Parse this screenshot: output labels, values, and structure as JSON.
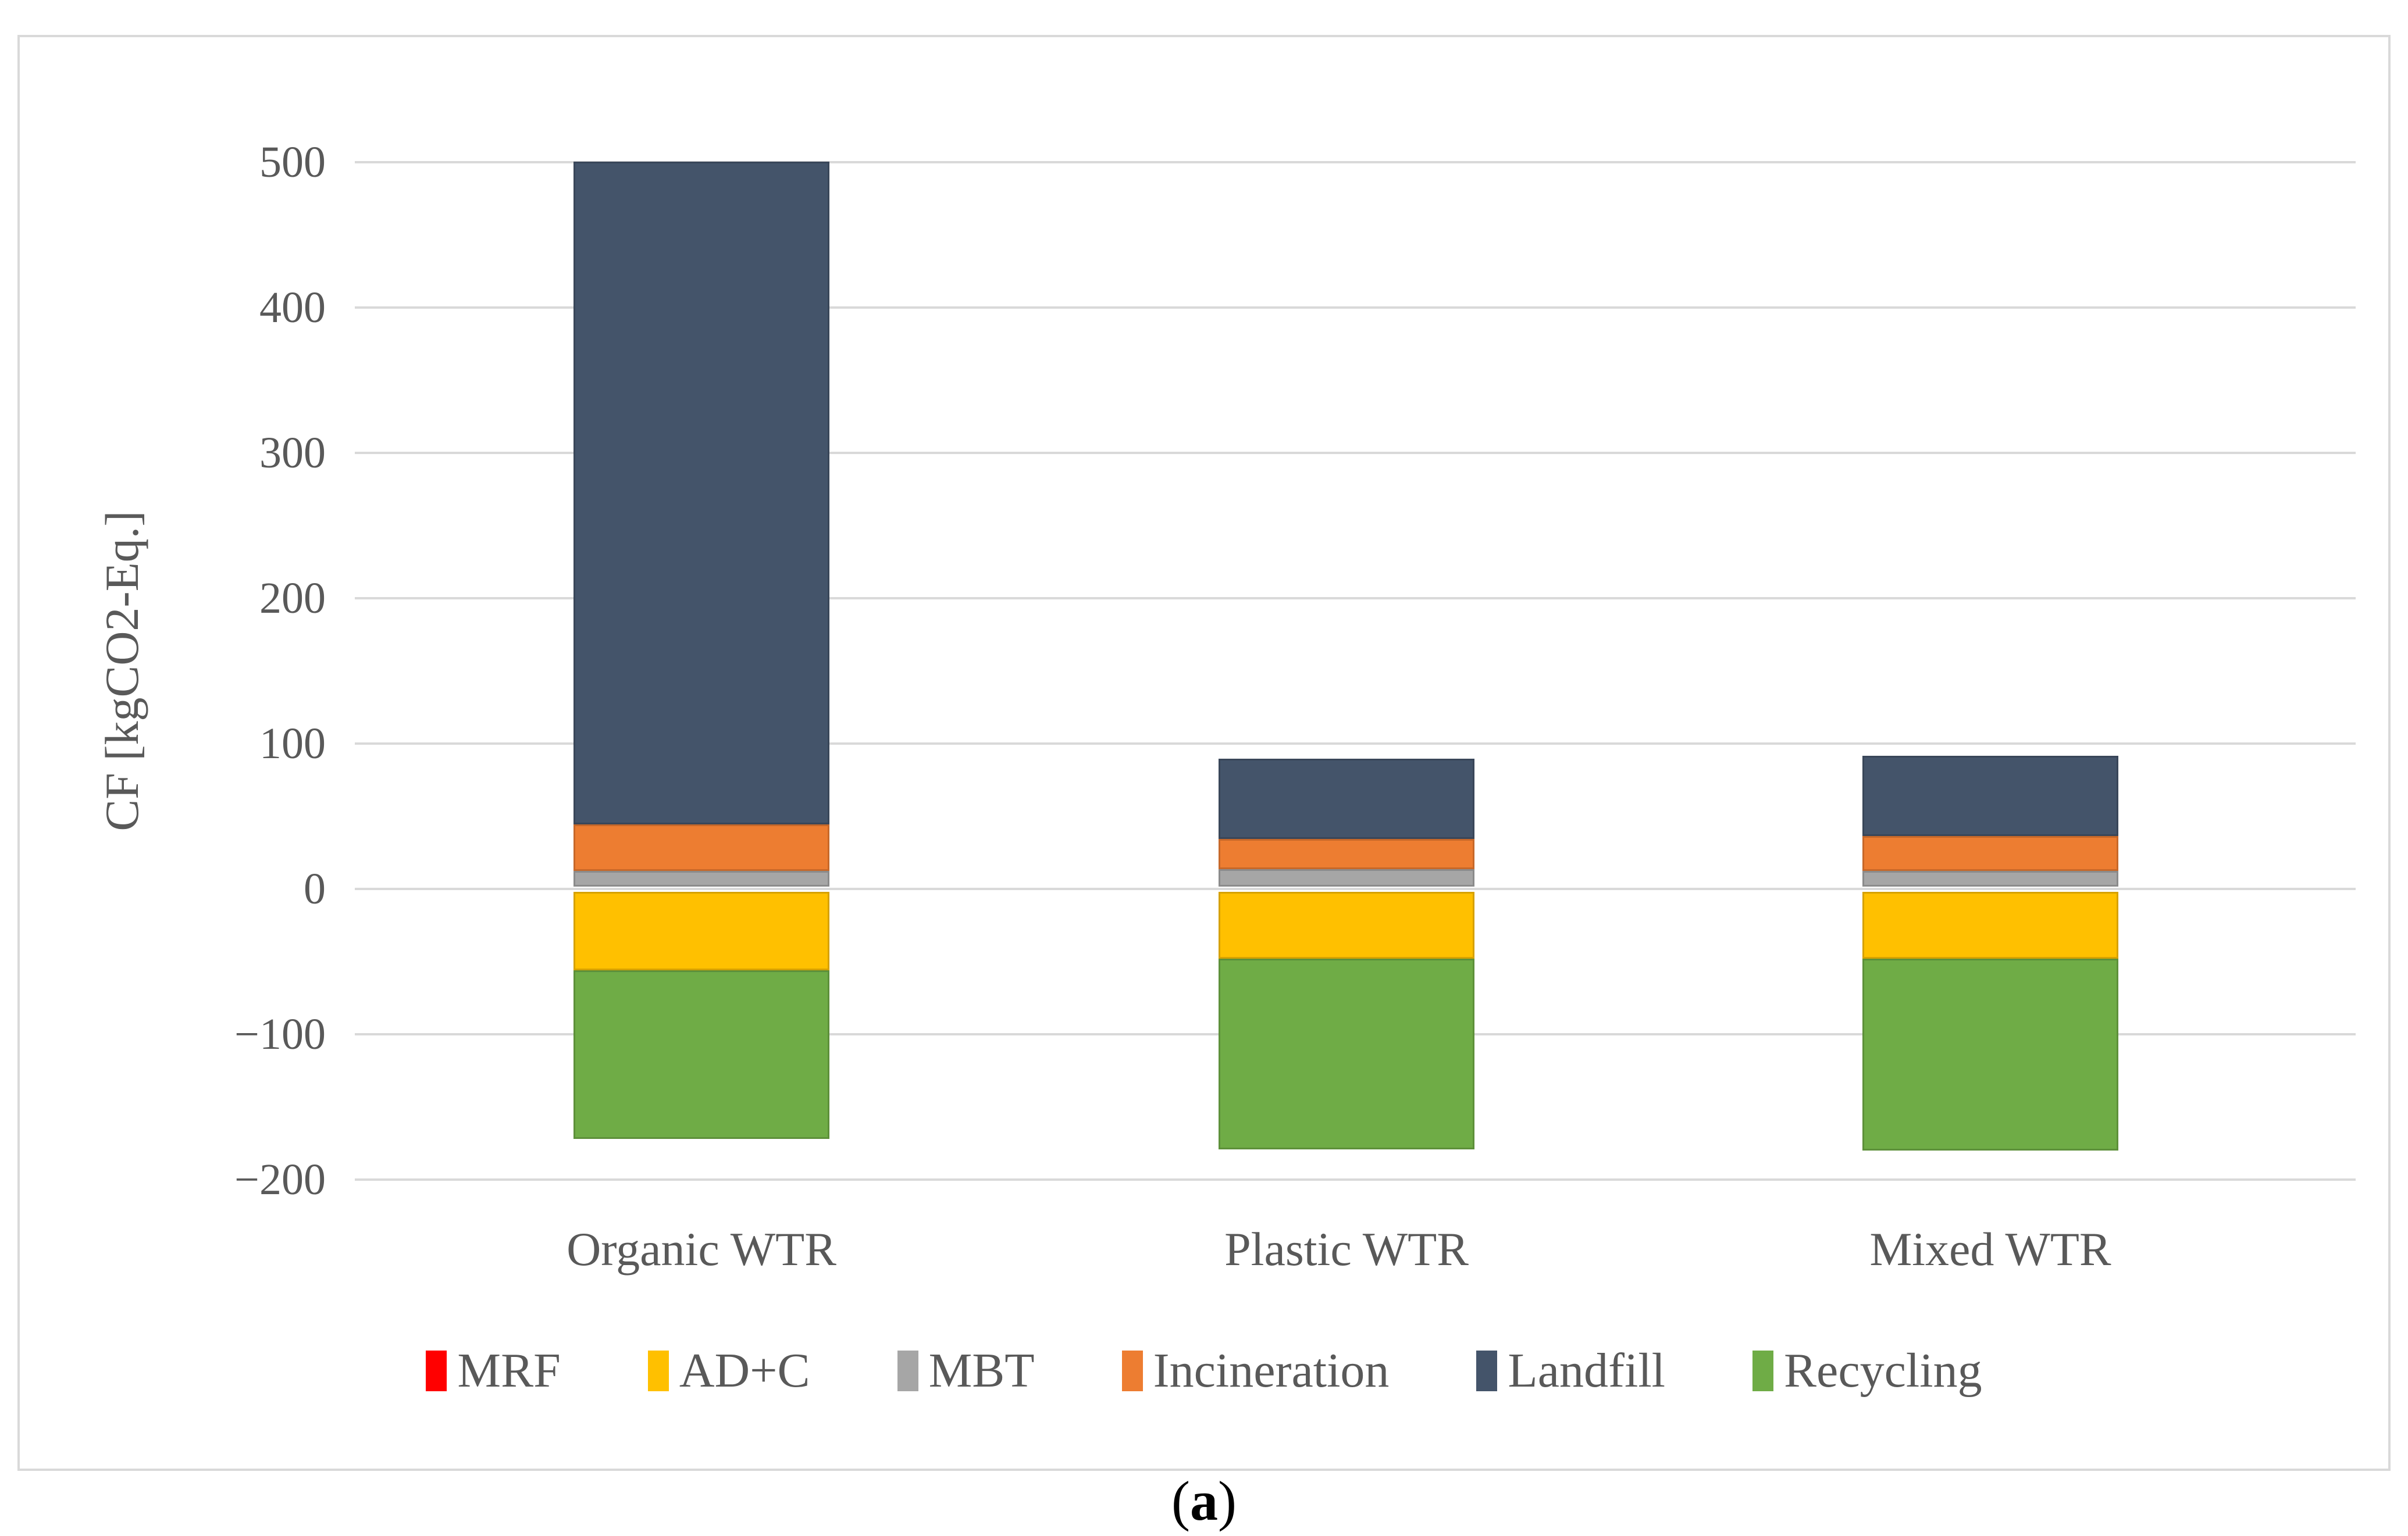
{
  "figure": {
    "caption": {
      "open": "(",
      "letter": "a",
      "close": ")"
    }
  },
  "chart_data": {
    "type": "bar",
    "stacked": true,
    "title": "",
    "xlabel": "",
    "ylabel": "CF [kgCO2-Eq.]",
    "ylim": [
      -200,
      500
    ],
    "ytick_step": 100,
    "yticks": [
      500,
      400,
      300,
      200,
      100,
      0,
      -100,
      -200
    ],
    "ytick_labels": [
      "500",
      "400",
      "300",
      "200",
      "100",
      "0",
      "−100",
      "−200"
    ],
    "grid": "horizontal",
    "legend_position": "bottom",
    "categories": [
      "Organic WTR",
      "Plastic WTR",
      "Mixed WTR"
    ],
    "series": [
      {
        "name": "MRF",
        "color": "#FF0000",
        "values": [
          0,
          0,
          0
        ]
      },
      {
        "name": "AD+C",
        "color": "#FFC000",
        "values": [
          -54,
          -46,
          -46
        ]
      },
      {
        "name": "MBT",
        "color": "#A6A6A6",
        "values": [
          11,
          12,
          11
        ]
      },
      {
        "name": "Incineration",
        "color": "#ED7D31",
        "values": [
          32,
          21,
          24
        ]
      },
      {
        "name": "Landfill",
        "color": "#44546A",
        "values": [
          456,
          55,
          55
        ]
      },
      {
        "name": "Recycling",
        "color": "#6FAC46",
        "values": [
          -116,
          -131,
          -132
        ]
      }
    ],
    "stack_totals": {
      "positive_tops": [
        499,
        88,
        90
      ],
      "negative_bottoms": [
        -170,
        -177,
        -178
      ]
    },
    "notes": "Organic WTR positive stack reaches the axis maximum of 500"
  },
  "colors": {
    "background": "#FFFFFF",
    "border": "#D9D9D9",
    "gridline": "#D9D9D9",
    "axis_text": "#595959",
    "caption_text": "#000000"
  }
}
